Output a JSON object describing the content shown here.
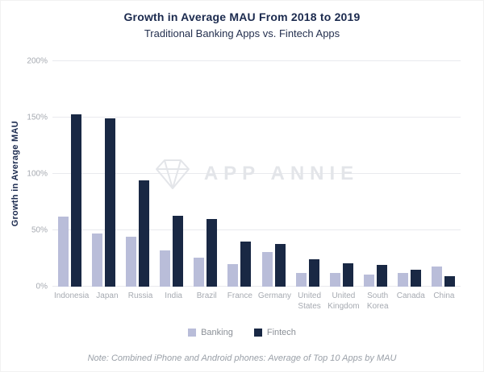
{
  "header": {
    "title": "Growth in Average MAU From 2018 to 2019",
    "subtitle": "Traditional Banking Apps vs. Fintech Apps"
  },
  "watermark": {
    "icon": "diamond-gem-icon",
    "text": "APP ANNIE"
  },
  "note": "Note: Combined iPhone and Android phones: Average of Top 10 Apps by MAU",
  "colors": {
    "title": "#1b2a4e",
    "banking": "#b9bdd9",
    "fintech": "#192844",
    "axis_text": "#a6aab1",
    "grid": "#e9eaee",
    "watermark": "#e3e5e9"
  },
  "chart_data": {
    "type": "bar",
    "title": "Growth in Average MAU From 2018 to 2019",
    "subtitle": "Traditional Banking Apps vs. Fintech Apps",
    "xlabel": "",
    "ylabel": "Growth in Average MAU",
    "ylim": [
      0,
      200
    ],
    "yticks": [
      "0%",
      "50%",
      "100%",
      "150%",
      "200%"
    ],
    "grid": true,
    "legend_position": "bottom",
    "categories": [
      "Indonesia",
      "Japan",
      "Russia",
      "India",
      "Brazil",
      "France",
      "Germany",
      "United States",
      "United Kingdom",
      "South Korea",
      "Canada",
      "China"
    ],
    "series": [
      {
        "name": "Banking",
        "color": "#b9bdd9",
        "values": [
          62,
          47,
          44,
          32,
          26,
          20,
          31,
          12,
          12,
          11,
          12,
          18
        ]
      },
      {
        "name": "Fintech",
        "color": "#192844",
        "values": [
          153,
          149,
          94,
          63,
          60,
          40,
          38,
          24,
          21,
          19,
          15,
          9
        ]
      }
    ]
  }
}
